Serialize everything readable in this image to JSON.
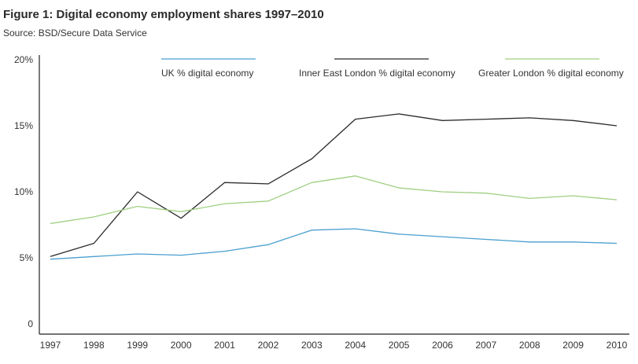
{
  "chart_data": {
    "type": "line",
    "title": "Figure 1: Digital economy employment shares 1997–2010",
    "subtitle": "Source: BSD/Secure Data Service",
    "xlabel": "",
    "ylabel": "",
    "x": [
      "1997",
      "1998",
      "1999",
      "2000",
      "2001",
      "2002",
      "2003",
      "2004",
      "2005",
      "2006",
      "2007",
      "2008",
      "2009",
      "2010"
    ],
    "ylim": [
      0,
      20
    ],
    "yticks": [
      0,
      5,
      10,
      15,
      20
    ],
    "ytick_labels": [
      "0",
      "5%",
      "10%",
      "15%",
      "20%"
    ],
    "grid": false,
    "legend_position": "top",
    "series": [
      {
        "name": "UK % digital economy",
        "color": "#4a9fcf",
        "values": [
          4.9,
          5.1,
          5.3,
          5.2,
          5.5,
          6.0,
          7.1,
          7.2,
          6.8,
          6.6,
          6.4,
          6.2,
          6.2,
          6.1
        ]
      },
      {
        "name": "Inner East London % digital economy",
        "color": "#2b2b2b",
        "values": [
          5.1,
          6.1,
          10.0,
          8.0,
          10.7,
          10.6,
          12.5,
          15.5,
          15.9,
          15.4,
          15.5,
          15.6,
          15.4,
          15.0
        ]
      },
      {
        "name": "Greater London % digital economy",
        "color": "#9fcf82",
        "values": [
          7.6,
          8.1,
          8.9,
          8.5,
          9.1,
          9.3,
          10.7,
          11.2,
          10.3,
          10.0,
          9.9,
          9.5,
          9.7,
          9.4
        ]
      }
    ]
  }
}
